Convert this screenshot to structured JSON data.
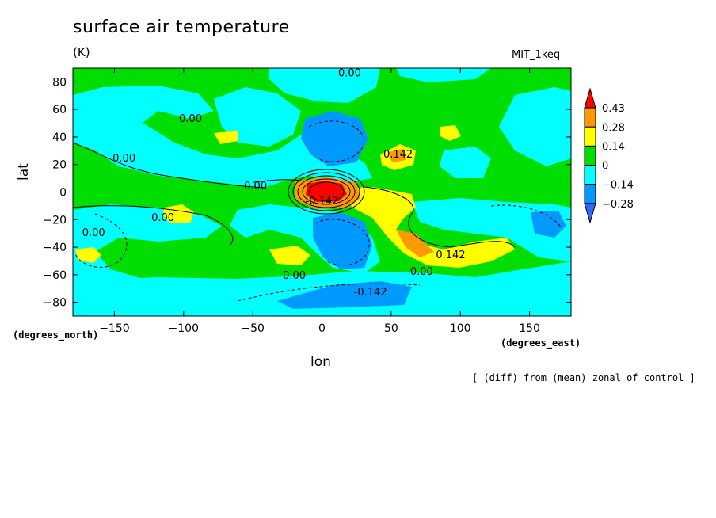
{
  "chart_data": {
    "type": "contour-map",
    "title": "surface air temperature",
    "units": "(K)",
    "model": "MIT_1keq",
    "xlabel": "lon",
    "ylabel": "lat",
    "x_units": "(degrees_east)",
    "y_units": "(degrees_north)",
    "note": "[ (diff) from (mean) zonal of control ]",
    "xlim": [
      -180,
      180
    ],
    "ylim": [
      -90,
      90
    ],
    "xticks": [
      -150,
      -100,
      -50,
      0,
      50,
      100,
      150
    ],
    "yticks": [
      80,
      60,
      40,
      20,
      0,
      -20,
      -40,
      -60,
      -80
    ],
    "colorbar": {
      "levels": [
        "0.43",
        "0.28",
        "0.14",
        "0",
        "−0.14",
        "−0.28"
      ],
      "colors": [
        "#ff0000",
        "#ff9900",
        "#ffff00",
        "#00dd00",
        "#00ffff",
        "#0099ff",
        "#3366ff"
      ]
    },
    "contour_labels": [
      {
        "text": "0.00",
        "lon": 20,
        "lat": 84
      },
      {
        "text": "0.00",
        "lon": -95,
        "lat": 51
      },
      {
        "text": "0.00",
        "lon": -143,
        "lat": 22
      },
      {
        "text": "0.00",
        "lon": -48,
        "lat": 2
      },
      {
        "text": "0.00",
        "lon": -115,
        "lat": -21
      },
      {
        "text": "0.00",
        "lon": -165,
        "lat": -32
      },
      {
        "text": "0.00",
        "lon": -20,
        "lat": -63
      },
      {
        "text": "0.00",
        "lon": 72,
        "lat": -60
      },
      {
        "text": "0.142",
        "lon": 55,
        "lat": 25
      },
      {
        "text": "-0.142",
        "lon": 0,
        "lat": -9
      },
      {
        "text": "0.142",
        "lon": 93,
        "lat": -48
      },
      {
        "text": "-0.142",
        "lon": 35,
        "lat": -75
      }
    ]
  }
}
